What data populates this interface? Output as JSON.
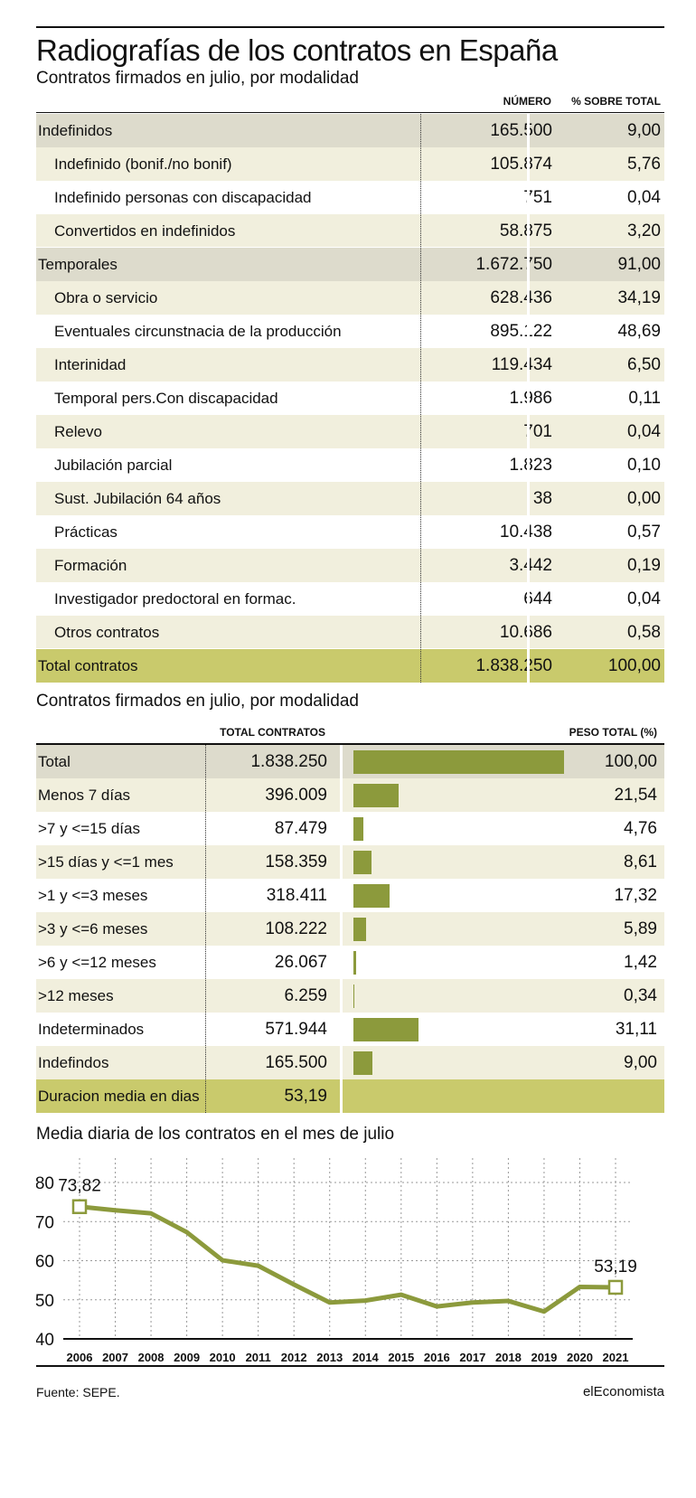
{
  "header": {
    "title": "Radiografías de los contratos en España",
    "subtitle1": "Contratos firmados en julio, por modalidad",
    "subtitle2": "Contratos firmados en julio, por modalidad",
    "subtitle3": "Media diaria de los contratos en el mes de julio"
  },
  "table1": {
    "headers": {
      "numero": "NÚMERO",
      "pct": "% SOBRE TOTAL"
    },
    "rows": [
      {
        "label": "Indefinidos",
        "numero": "165.500",
        "pct": "9,00",
        "kind": "cat"
      },
      {
        "label": "Indefinido (bonif./no bonif)",
        "numero": "105.874",
        "pct": "5,76",
        "kind": "sub"
      },
      {
        "label": "Indefinido personas con discapacidad",
        "numero": "751",
        "pct": "0,04",
        "kind": "sub"
      },
      {
        "label": "Convertidos en indefinidos",
        "numero": "58.875",
        "pct": "3,20",
        "kind": "sub"
      },
      {
        "label": "Temporales",
        "numero": "1.672.750",
        "pct": "91,00",
        "kind": "cat"
      },
      {
        "label": "Obra o servicio",
        "numero": "628.436",
        "pct": "34,19",
        "kind": "sub"
      },
      {
        "label": "Eventuales circunstnacia de la producción",
        "numero": "895.122",
        "pct": "48,69",
        "kind": "sub"
      },
      {
        "label": "Interinidad",
        "numero": "119.434",
        "pct": "6,50",
        "kind": "sub"
      },
      {
        "label": "Temporal pers.Con discapacidad",
        "numero": "1.986",
        "pct": "0,11",
        "kind": "sub"
      },
      {
        "label": "Relevo",
        "numero": "701",
        "pct": "0,04",
        "kind": "sub"
      },
      {
        "label": "Jubilación parcial",
        "numero": "1.823",
        "pct": "0,10",
        "kind": "sub"
      },
      {
        "label": "Sust. Jubilación 64 años",
        "numero": "38",
        "pct": "0,00",
        "kind": "sub"
      },
      {
        "label": "Prácticas",
        "numero": "10.438",
        "pct": "0,57",
        "kind": "sub"
      },
      {
        "label": "Formación",
        "numero": "3.442",
        "pct": "0,19",
        "kind": "sub"
      },
      {
        "label": "Investigador predoctoral en formac.",
        "numero": "644",
        "pct": "0,04",
        "kind": "sub"
      },
      {
        "label": "Otros contratos",
        "numero": "10.686",
        "pct": "0,58",
        "kind": "sub"
      },
      {
        "label": "Total contratos",
        "numero": "1.838.250",
        "pct": "100,00",
        "kind": "tot"
      }
    ]
  },
  "table2": {
    "headers": {
      "total": "TOTAL CONTRATOS",
      "peso": "PESO TOTAL (%)"
    },
    "rows": [
      {
        "label": "Total",
        "total": "1.838.250",
        "peso": "100,00",
        "value": 100.0
      },
      {
        "label": "Menos 7 días",
        "total": "396.009",
        "peso": "21,54",
        "value": 21.54
      },
      {
        "label": ">7 y <=15 días",
        "total": "87.479",
        "peso": "4,76",
        "value": 4.76
      },
      {
        "label": ">15 días y <=1 mes",
        "total": "158.359",
        "peso": "8,61",
        "value": 8.61
      },
      {
        "label": ">1 y <=3 meses",
        "total": "318.411",
        "peso": "17,32",
        "value": 17.32
      },
      {
        "label": ">3 y <=6 meses",
        "total": "108.222",
        "peso": "5,89",
        "value": 5.89
      },
      {
        "label": ">6 y <=12 meses",
        "total": "26.067",
        "peso": "1,42",
        "value": 1.42
      },
      {
        "label": ">12 meses",
        "total": "6.259",
        "peso": "0,34",
        "value": 0.34
      },
      {
        "label": "Indeterminados",
        "total": "571.944",
        "peso": "31,11",
        "value": 31.11
      },
      {
        "label": "Indefindos",
        "total": "165.500",
        "peso": "9,00",
        "value": 9.0
      }
    ],
    "footer": {
      "label": "Duracion media en dias",
      "total": "53,19"
    }
  },
  "chart_data": {
    "type": "line",
    "title": "Media diaria de los contratos en el mes de julio",
    "x": [
      "2006",
      "2007",
      "2008",
      "2009",
      "2010",
      "2011",
      "2012",
      "2013",
      "2014",
      "2015",
      "2016",
      "2017",
      "2018",
      "2019",
      "2020",
      "2021"
    ],
    "values": [
      73.82,
      72.9,
      72.1,
      67.3,
      60.1,
      58.7,
      53.9,
      49.3,
      49.8,
      51.3,
      48.3,
      49.3,
      49.7,
      47.0,
      53.3,
      53.19
    ],
    "ylim": [
      40,
      80
    ],
    "yticks": [
      40,
      50,
      60,
      70,
      80
    ],
    "ytick_labels": [
      "40",
      "50",
      "60",
      "70",
      "80"
    ],
    "annotations": [
      {
        "index": 0,
        "text": "73,82"
      },
      {
        "index": 15,
        "text": "53,19"
      }
    ],
    "grid": true,
    "colors": {
      "line": "#8c9a3c",
      "grid": "#999999"
    }
  },
  "footer": {
    "source": "Fuente: SEPE.",
    "brand": "elEconomista"
  },
  "colors": {
    "category": "#dddbcc",
    "total": "#c9ca6c",
    "alt": "#f1efdd",
    "bar": "#8c9a3c"
  }
}
